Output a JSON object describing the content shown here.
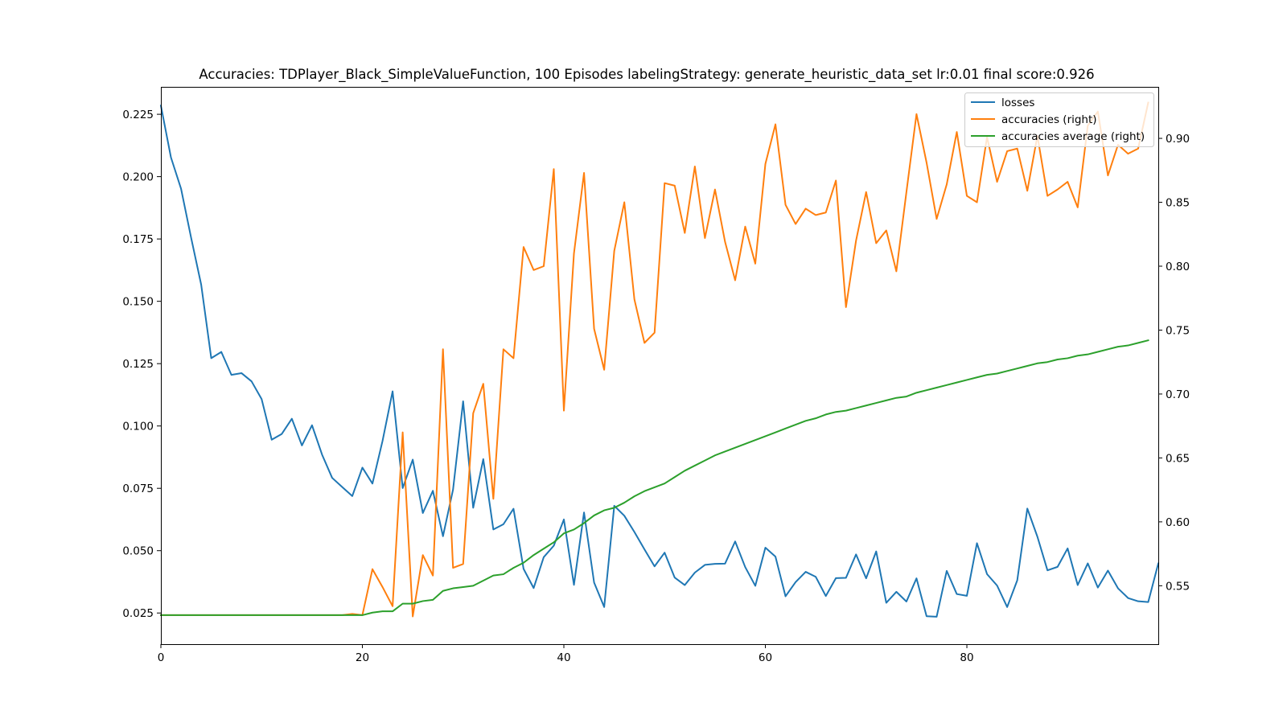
{
  "chart_data": {
    "type": "line",
    "title": "Accuracies: TDPlayer_Black_SimpleValueFunction, 100 Episodes labelingStrategy: generate_heuristic_data_set lr:0.01 final score:0.926",
    "xlabel": "",
    "ylabel": "",
    "ylabel_right": "",
    "xlim": [
      0,
      99
    ],
    "ylim_left": [
      0.0125,
      0.236
    ],
    "ylim_right": [
      0.5043,
      0.9403
    ],
    "x_ticks": [
      0,
      20,
      40,
      60,
      80
    ],
    "y_ticks_left": [
      0.025,
      0.05,
      0.075,
      0.1,
      0.125,
      0.15,
      0.175,
      0.2,
      0.225
    ],
    "y_ticks_left_labels": [
      "0.025",
      "0.050",
      "0.075",
      "0.100",
      "0.125",
      "0.150",
      "0.175",
      "0.200",
      "0.225"
    ],
    "y_ticks_right": [
      0.55,
      0.6,
      0.65,
      0.7,
      0.75,
      0.8,
      0.85,
      0.9
    ],
    "y_ticks_right_labels": [
      "0.55",
      "0.60",
      "0.65",
      "0.70",
      "0.75",
      "0.80",
      "0.85",
      "0.90"
    ],
    "grid": false,
    "legend_position": "top-right",
    "series": [
      {
        "name": "losses",
        "axis": "left",
        "color": "#1f77b4",
        "values": [
          0.2285,
          0.2077,
          0.1952,
          0.1755,
          0.1567,
          0.1272,
          0.1297,
          0.1205,
          0.1212,
          0.1179,
          0.1108,
          0.0945,
          0.0968,
          0.1029,
          0.0922,
          0.1003,
          0.0885,
          0.0792,
          0.0755,
          0.0719,
          0.0833,
          0.0769,
          0.094,
          0.1139,
          0.0751,
          0.0865,
          0.0651,
          0.074,
          0.0558,
          0.0745,
          0.1099,
          0.0672,
          0.0867,
          0.0585,
          0.0606,
          0.0668,
          0.0427,
          0.035,
          0.0474,
          0.052,
          0.0625,
          0.0363,
          0.0653,
          0.0372,
          0.0274,
          0.068,
          0.064,
          0.0575,
          0.0505,
          0.0437,
          0.0492,
          0.0392,
          0.0362,
          0.0412,
          0.0443,
          0.0447,
          0.0448,
          0.0537,
          0.0434,
          0.0359,
          0.0512,
          0.0476,
          0.0317,
          0.0374,
          0.0415,
          0.0395,
          0.0318,
          0.039,
          0.0391,
          0.0485,
          0.0389,
          0.0497,
          0.0291,
          0.0335,
          0.0296,
          0.0389,
          0.0237,
          0.0235,
          0.0419,
          0.0326,
          0.0319,
          0.053,
          0.0406,
          0.036,
          0.0274,
          0.0381,
          0.0669,
          0.0556,
          0.0421,
          0.0435,
          0.0509,
          0.0362,
          0.0449,
          0.0352,
          0.042,
          0.0349,
          0.031,
          0.0297,
          0.0294,
          0.0449
        ]
      },
      {
        "name": "accuracies (right)",
        "axis": "right",
        "color": "#ff7f0e",
        "values": [
          0.527,
          0.527,
          0.527,
          0.527,
          0.527,
          0.527,
          0.527,
          0.527,
          0.527,
          0.527,
          0.527,
          0.527,
          0.527,
          0.527,
          0.527,
          0.527,
          0.527,
          0.527,
          0.527,
          0.528,
          0.527,
          0.563,
          0.549,
          0.534,
          0.67,
          0.526,
          0.574,
          0.558,
          0.735,
          0.564,
          0.567,
          0.685,
          0.708,
          0.618,
          0.735,
          0.728,
          0.815,
          0.797,
          0.8,
          0.876,
          0.687,
          0.81,
          0.873,
          0.751,
          0.719,
          0.812,
          0.85,
          0.774,
          0.74,
          0.748,
          0.865,
          0.863,
          0.826,
          0.878,
          0.822,
          0.86,
          0.819,
          0.789,
          0.831,
          0.802,
          0.88,
          0.911,
          0.848,
          0.833,
          0.845,
          0.84,
          0.842,
          0.867,
          0.768,
          0.82,
          0.858,
          0.818,
          0.828,
          0.796,
          0.858,
          0.919,
          0.881,
          0.837,
          0.864,
          0.905,
          0.855,
          0.85,
          0.901,
          0.866,
          0.89,
          0.892,
          0.859,
          0.902,
          0.855,
          0.86,
          0.866,
          0.846,
          0.91,
          0.921,
          0.871,
          0.895,
          0.888,
          0.892,
          0.928
        ]
      },
      {
        "name": "accuracies average (right)",
        "axis": "right",
        "color": "#2ca02c",
        "values": [
          0.527,
          0.527,
          0.527,
          0.527,
          0.527,
          0.527,
          0.527,
          0.527,
          0.527,
          0.527,
          0.527,
          0.527,
          0.527,
          0.527,
          0.527,
          0.527,
          0.527,
          0.527,
          0.527,
          0.527,
          0.527,
          0.529,
          0.53,
          0.53,
          0.536,
          0.536,
          0.538,
          0.539,
          0.546,
          0.548,
          0.549,
          0.55,
          0.554,
          0.558,
          0.559,
          0.564,
          0.568,
          0.574,
          0.579,
          0.584,
          0.591,
          0.594,
          0.599,
          0.605,
          0.609,
          0.611,
          0.615,
          0.62,
          0.624,
          0.627,
          0.63,
          0.635,
          0.64,
          0.644,
          0.648,
          0.652,
          0.655,
          0.658,
          0.661,
          0.664,
          0.667,
          0.67,
          0.673,
          0.676,
          0.679,
          0.681,
          0.684,
          0.686,
          0.687,
          0.689,
          0.691,
          0.693,
          0.695,
          0.697,
          0.698,
          0.701,
          0.703,
          0.705,
          0.707,
          0.709,
          0.711,
          0.713,
          0.715,
          0.716,
          0.718,
          0.72,
          0.722,
          0.724,
          0.725,
          0.727,
          0.728,
          0.73,
          0.731,
          0.733,
          0.735,
          0.737,
          0.738,
          0.74,
          0.742
        ]
      }
    ]
  }
}
